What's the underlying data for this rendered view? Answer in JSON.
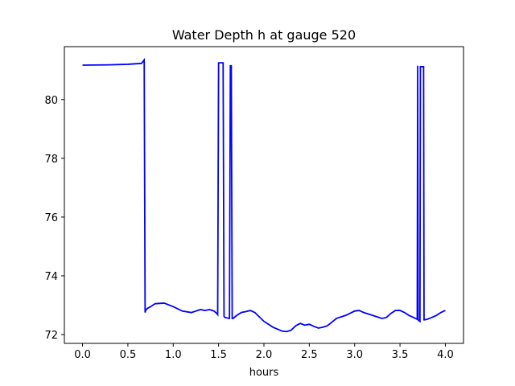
{
  "chart_data": {
    "type": "line",
    "title": "Water Depth h at gauge 520",
    "xlabel": "hours",
    "ylabel": "",
    "xlim": [
      -0.2,
      4.2
    ],
    "ylim": [
      71.7,
      81.8
    ],
    "xticks": [
      0.0,
      0.5,
      1.0,
      1.5,
      2.0,
      2.5,
      3.0,
      3.5,
      4.0
    ],
    "xtick_labels": [
      "0.0",
      "0.5",
      "1.0",
      "1.5",
      "2.0",
      "2.5",
      "3.0",
      "3.5",
      "4.0"
    ],
    "yticks": [
      72,
      74,
      76,
      78,
      80
    ],
    "ytick_labels": [
      "72",
      "74",
      "76",
      "78",
      "80"
    ],
    "grid": false,
    "series": [
      {
        "color": "#0000ff",
        "x": [
          0.0,
          0.3,
          0.5,
          0.65,
          0.68,
          0.69,
          0.7,
          0.72,
          0.75,
          0.8,
          0.9,
          1.0,
          1.1,
          1.2,
          1.25,
          1.3,
          1.35,
          1.4,
          1.45,
          1.48,
          1.49,
          1.5,
          1.55,
          1.56,
          1.57,
          1.62,
          1.63,
          1.64,
          1.65,
          1.66,
          1.7,
          1.75,
          1.8,
          1.85,
          1.9,
          2.0,
          2.1,
          2.2,
          2.25,
          2.3,
          2.35,
          2.4,
          2.45,
          2.5,
          2.55,
          2.6,
          2.65,
          2.7,
          2.8,
          2.9,
          3.0,
          3.05,
          3.1,
          3.2,
          3.3,
          3.35,
          3.4,
          3.45,
          3.5,
          3.55,
          3.6,
          3.65,
          3.69,
          3.695,
          3.7,
          3.72,
          3.725,
          3.73,
          3.76,
          3.765,
          3.77,
          3.8,
          3.85,
          3.9,
          3.95,
          4.0
        ],
        "y": [
          81.17,
          81.18,
          81.2,
          81.23,
          81.35,
          72.75,
          72.85,
          72.9,
          72.95,
          73.05,
          73.07,
          72.95,
          72.8,
          72.75,
          72.8,
          72.85,
          72.82,
          72.85,
          72.8,
          72.72,
          72.68,
          81.25,
          81.25,
          72.62,
          72.58,
          72.55,
          81.15,
          81.15,
          72.55,
          72.55,
          72.65,
          72.75,
          72.78,
          72.82,
          72.75,
          72.45,
          72.25,
          72.12,
          72.1,
          72.15,
          72.3,
          72.38,
          72.32,
          72.35,
          72.28,
          72.22,
          72.25,
          72.3,
          72.55,
          72.65,
          72.8,
          72.82,
          72.75,
          72.65,
          72.55,
          72.58,
          72.72,
          72.82,
          72.82,
          72.75,
          72.65,
          72.58,
          72.52,
          81.15,
          72.5,
          72.45,
          81.12,
          81.12,
          81.12,
          72.5,
          72.5,
          72.52,
          72.58,
          72.65,
          72.75,
          72.82
        ]
      }
    ]
  }
}
